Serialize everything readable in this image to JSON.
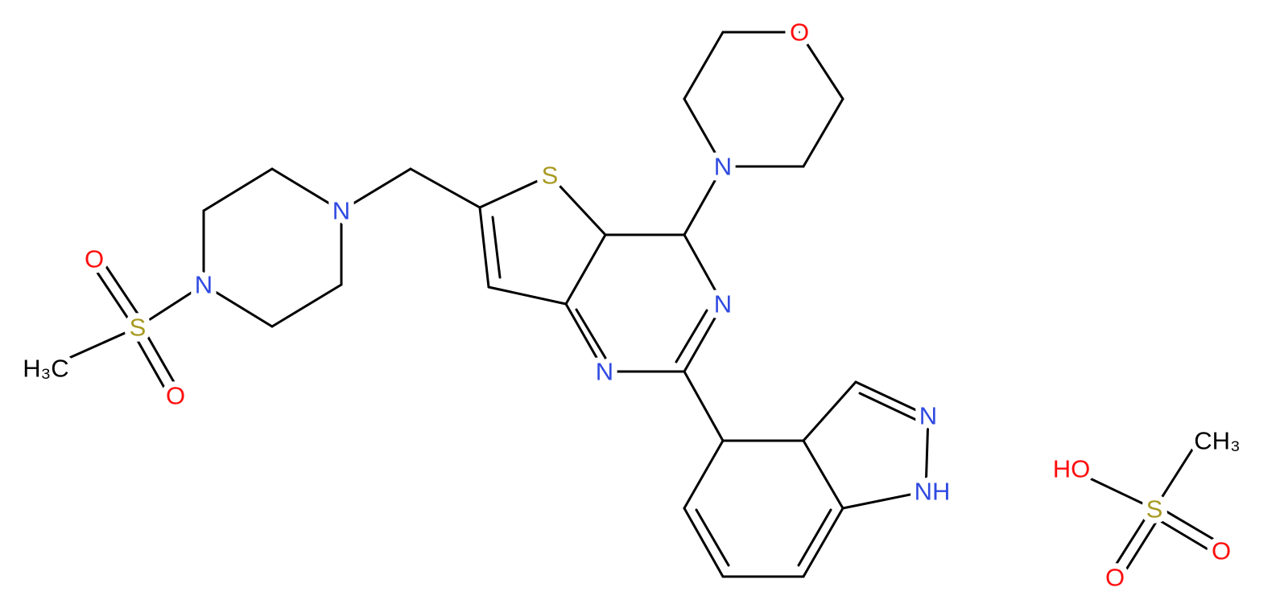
{
  "atoms": [
    "O",
    "N",
    "S",
    "N",
    "N",
    "O",
    "S",
    "H₃C",
    "O",
    "N",
    "N",
    "N",
    "NH",
    "HO",
    "S",
    "CH₃",
    "O",
    "O"
  ]
}
